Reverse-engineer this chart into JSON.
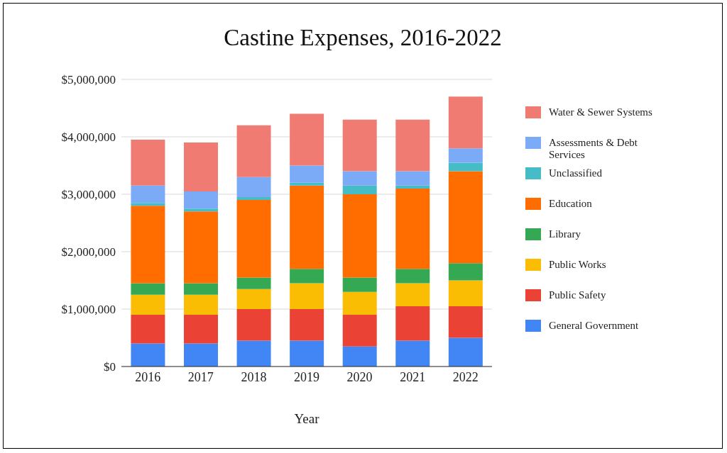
{
  "chart_data": {
    "type": "bar",
    "title": "Castine Expenses, 2016-2022",
    "xlabel": "Year",
    "categories": [
      "2016",
      "2017",
      "2018",
      "2019",
      "2020",
      "2021",
      "2022"
    ],
    "stacked": true,
    "grid": "y",
    "legend": "right",
    "ylim": [
      0,
      5000000
    ],
    "yticks": [
      {
        "value": 0,
        "label": "$0"
      },
      {
        "value": 1000000,
        "label": "$1,000,000"
      },
      {
        "value": 2000000,
        "label": "$2,000,000"
      },
      {
        "value": 3000000,
        "label": "$3,000,000"
      },
      {
        "value": 4000000,
        "label": "$4,000,000"
      },
      {
        "value": 5000000,
        "label": "$5,000,000"
      }
    ],
    "series": [
      {
        "name": "General Government",
        "color": "#4285f4",
        "values": [
          400000,
          400000,
          450000,
          450000,
          350000,
          450000,
          500000
        ]
      },
      {
        "name": "Public Safety",
        "color": "#ea4335",
        "values": [
          500000,
          500000,
          550000,
          550000,
          550000,
          600000,
          550000
        ]
      },
      {
        "name": "Public Works",
        "color": "#fbbc04",
        "values": [
          350000,
          350000,
          350000,
          450000,
          400000,
          400000,
          450000
        ]
      },
      {
        "name": "Library",
        "color": "#34a853",
        "values": [
          200000,
          200000,
          200000,
          250000,
          250000,
          250000,
          300000
        ]
      },
      {
        "name": "Education",
        "color": "#ff6d01",
        "values": [
          1350000,
          1250000,
          1350000,
          1450000,
          1450000,
          1400000,
          1600000
        ]
      },
      {
        "name": "Unclassified",
        "color": "#46bdc6",
        "values": [
          50000,
          50000,
          50000,
          50000,
          150000,
          50000,
          150000
        ]
      },
      {
        "name": "Assessments & Debt Services",
        "color": "#7baaf7",
        "values": [
          300000,
          300000,
          350000,
          300000,
          250000,
          250000,
          250000
        ]
      },
      {
        "name": "Water & Sewer Systems",
        "color": "#f07b72",
        "values": [
          800000,
          850000,
          900000,
          900000,
          900000,
          900000,
          900000
        ]
      }
    ]
  }
}
